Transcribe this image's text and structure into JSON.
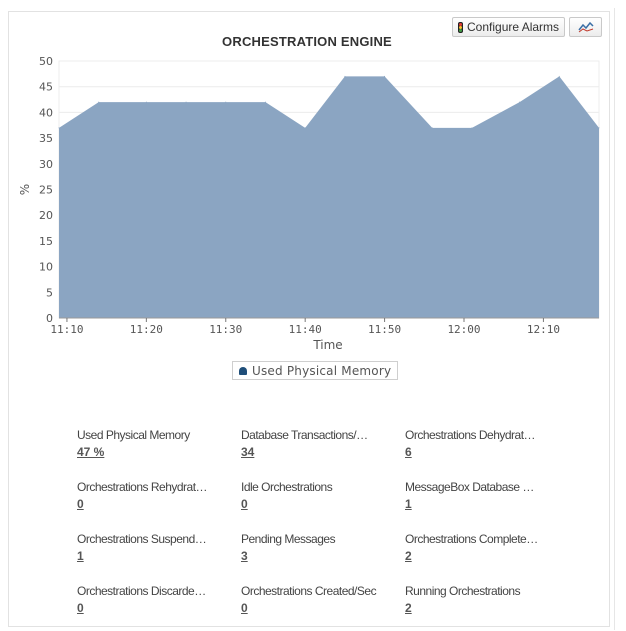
{
  "toolbar": {
    "configure_alarms_label": "Configure Alarms",
    "alarm_icon": "traffic-light-icon",
    "chart_toggle_icon": "line-chart-icon"
  },
  "chart_data": {
    "type": "area",
    "title": "ORCHESTRATION ENGINE",
    "xlabel": "Time",
    "ylabel": "%",
    "ylim": [
      0,
      50
    ],
    "yticks": [
      "0",
      "5",
      "10",
      "15",
      "20",
      "25",
      "30",
      "35",
      "40",
      "45",
      "50"
    ],
    "xticks": [
      "11:10",
      "11:20",
      "11:30",
      "11:40",
      "11:50",
      "12:00",
      "12:10"
    ],
    "x": [
      "11:09",
      "11:14",
      "11:20",
      "11:25",
      "11:30",
      "11:35",
      "11:40",
      "11:45",
      "11:50",
      "11:56",
      "12:01",
      "12:07",
      "12:12",
      "12:17"
    ],
    "series": [
      {
        "name": "Used Physical Memory",
        "values": [
          37,
          42,
          42,
          42,
          42,
          42,
          37,
          47,
          47,
          37,
          37,
          42,
          47,
          37
        ]
      }
    ],
    "grid": true,
    "legend": "bottom-center",
    "colors": {
      "area": "#8ba5c2",
      "legend_marker": "#1f4e79"
    }
  },
  "metrics": [
    {
      "label": "Used Physical Memory",
      "value": "47 %"
    },
    {
      "label": "Database Transactions/…",
      "value": "34"
    },
    {
      "label": "Orchestrations Dehydrat…",
      "value": "6"
    },
    {
      "label": "Orchestrations Rehydrat…",
      "value": "0"
    },
    {
      "label": "Idle Orchestrations",
      "value": "0"
    },
    {
      "label": "MessageBox Database …",
      "value": "1"
    },
    {
      "label": "Orchestrations Suspend…",
      "value": "1"
    },
    {
      "label": "Pending Messages",
      "value": "3"
    },
    {
      "label": "Orchestrations Complete…",
      "value": "2"
    },
    {
      "label": "Orchestrations Discarde…",
      "value": "0"
    },
    {
      "label": "Orchestrations Created/Sec",
      "value": "0"
    },
    {
      "label": "Running Orchestrations",
      "value": "2"
    }
  ]
}
